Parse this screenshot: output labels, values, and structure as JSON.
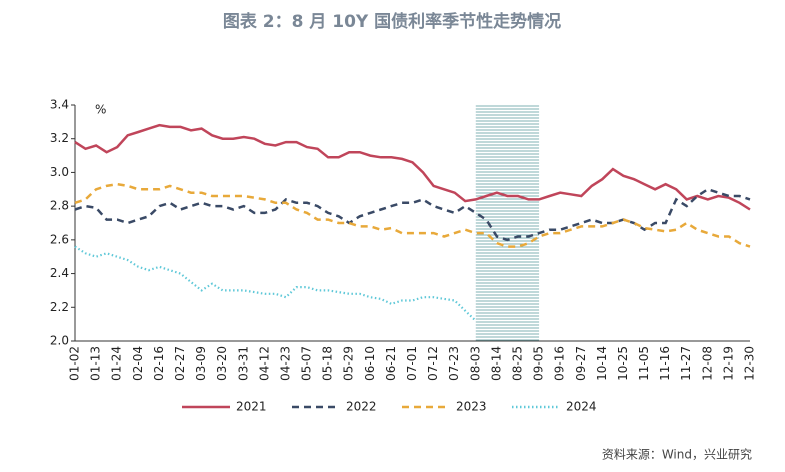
{
  "chart_data": {
    "type": "line",
    "title": "图表 2：8 月 10Y 国债利率季节性走势情况",
    "unit": "%",
    "source": "资料来源：Wind，兴业研究",
    "categories": [
      "01-02",
      null,
      "01-13",
      null,
      "01-24",
      null,
      "02-04",
      null,
      "02-16",
      null,
      "02-27",
      null,
      "03-09",
      null,
      "03-20",
      null,
      "03-31",
      null,
      "04-12",
      null,
      "04-23",
      null,
      "05-07",
      null,
      "05-18",
      null,
      "05-29",
      null,
      "06-10",
      null,
      "06-21",
      null,
      "07-01",
      null,
      "07-12",
      null,
      "07-23",
      null,
      "08-03",
      null,
      "08-14",
      null,
      "08-25",
      null,
      "09-05",
      null,
      "09-16",
      null,
      "09-27",
      null,
      "10-14",
      null,
      "10-25",
      null,
      "11-05",
      null,
      "11-16",
      null,
      "11-27",
      null,
      "12-08",
      null,
      "12-19",
      null,
      "12-30"
    ],
    "highlight": [
      "08-03",
      "09-05"
    ],
    "highlight_color": "#5f9ea0",
    "ylim": [
      2.0,
      3.4
    ],
    "yticks": [
      {
        "value": 2.0,
        "label": "2.0"
      },
      2.2,
      2.4,
      2.6,
      2.8,
      {
        "value": 3.0,
        "label": "3.0"
      },
      3.2,
      3.4
    ],
    "series": [
      {
        "name": "2021",
        "color": "#c0455a",
        "dash": "solid",
        "values": [
          3.18,
          3.14,
          3.16,
          3.12,
          3.15,
          3.22,
          3.24,
          3.26,
          3.28,
          3.27,
          3.27,
          3.25,
          3.26,
          3.22,
          3.2,
          3.2,
          3.21,
          3.2,
          3.17,
          3.16,
          3.18,
          3.18,
          3.15,
          3.14,
          3.09,
          3.09,
          3.12,
          3.12,
          3.1,
          3.09,
          3.09,
          3.08,
          3.06,
          3.0,
          2.92,
          2.9,
          2.88,
          2.83,
          2.84,
          2.86,
          2.88,
          2.86,
          2.86,
          2.84,
          2.84,
          2.86,
          2.88,
          2.87,
          2.86,
          2.92,
          2.96,
          3.02,
          2.98,
          2.96,
          2.93,
          2.9,
          2.93,
          2.9,
          2.84,
          2.86,
          2.84,
          2.86,
          2.85,
          2.82,
          2.78
        ]
      },
      {
        "name": "2022",
        "color": "#3a4a66",
        "dash": "dashed",
        "values": [
          2.78,
          2.8,
          2.79,
          2.72,
          2.72,
          2.7,
          2.72,
          2.74,
          2.8,
          2.82,
          2.78,
          2.8,
          2.82,
          2.8,
          2.8,
          2.78,
          2.8,
          2.76,
          2.76,
          2.78,
          2.84,
          2.82,
          2.82,
          2.8,
          2.76,
          2.74,
          2.7,
          2.74,
          2.76,
          2.78,
          2.8,
          2.82,
          2.82,
          2.84,
          2.8,
          2.78,
          2.76,
          2.8,
          2.76,
          2.72,
          2.62,
          2.6,
          2.62,
          2.62,
          2.64,
          2.66,
          2.66,
          2.68,
          2.7,
          2.72,
          2.7,
          2.7,
          2.72,
          2.7,
          2.66,
          2.7,
          2.7,
          2.84,
          2.8,
          2.86,
          2.9,
          2.88,
          2.86,
          2.86,
          2.84
        ]
      },
      {
        "name": "2023",
        "color": "#e8a93a",
        "dash": "dashed",
        "values": [
          2.82,
          2.84,
          2.9,
          2.92,
          2.93,
          2.92,
          2.9,
          2.9,
          2.9,
          2.92,
          2.9,
          2.88,
          2.88,
          2.86,
          2.86,
          2.86,
          2.86,
          2.85,
          2.84,
          2.82,
          2.82,
          2.78,
          2.76,
          2.72,
          2.72,
          2.7,
          2.7,
          2.68,
          2.68,
          2.66,
          2.67,
          2.64,
          2.64,
          2.64,
          2.64,
          2.62,
          2.64,
          2.66,
          2.64,
          2.64,
          2.58,
          2.56,
          2.56,
          2.58,
          2.62,
          2.64,
          2.64,
          2.66,
          2.68,
          2.68,
          2.68,
          2.7,
          2.72,
          2.7,
          2.67,
          2.66,
          2.65,
          2.66,
          2.7,
          2.66,
          2.64,
          2.62,
          2.62,
          2.58,
          2.56
        ]
      },
      {
        "name": "2024",
        "color": "#5fc8d8",
        "dash": "dotted",
        "values": [
          2.56,
          2.52,
          2.5,
          2.52,
          2.5,
          2.48,
          2.44,
          2.42,
          2.44,
          2.42,
          2.4,
          2.35,
          2.3,
          2.34,
          2.3,
          2.3,
          2.3,
          2.29,
          2.28,
          2.28,
          2.26,
          2.32,
          2.32,
          2.3,
          2.3,
          2.29,
          2.28,
          2.28,
          2.26,
          2.25,
          2.22,
          2.24,
          2.24,
          2.26,
          2.26,
          2.25,
          2.24,
          2.18,
          2.12,
          null,
          null,
          null,
          null,
          null,
          null,
          null,
          null,
          null,
          null,
          null,
          null,
          null,
          null,
          null,
          null,
          null,
          null,
          null,
          null,
          null,
          null,
          null,
          null,
          null,
          null
        ]
      }
    ]
  }
}
